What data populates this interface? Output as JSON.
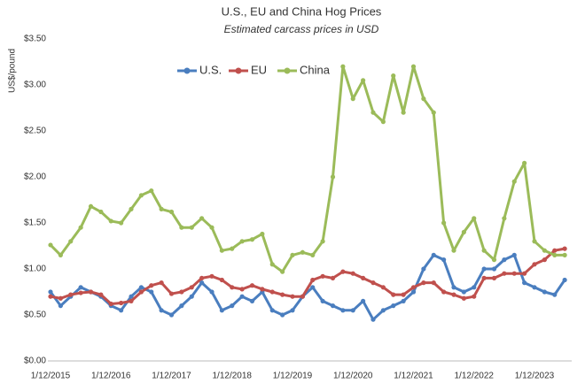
{
  "chart_data": {
    "type": "line",
    "title": "U.S., EU and China Hog Prices",
    "subtitle": "Estimated carcass prices in USD",
    "y_label": "US$/pound",
    "categories": [
      "1/12/2015",
      null,
      null,
      null,
      null,
      null,
      "1/12/2016",
      null,
      null,
      null,
      null,
      null,
      "1/12/2017",
      null,
      null,
      null,
      null,
      null,
      "1/12/2018",
      null,
      null,
      null,
      null,
      null,
      "1/12/2019",
      null,
      null,
      null,
      null,
      null,
      "1/12/2020",
      null,
      null,
      null,
      null,
      null,
      "1/12/2021",
      null,
      null,
      null,
      null,
      null,
      "1/12/2022",
      null,
      null,
      null,
      null,
      null,
      "1/12/2023",
      null,
      null,
      null
    ],
    "series": [
      {
        "name": "U.S.",
        "color": "#4a7ebf",
        "values": [
          0.75,
          0.6,
          0.7,
          0.8,
          0.75,
          0.7,
          0.6,
          0.55,
          0.7,
          0.8,
          0.75,
          0.55,
          0.5,
          0.6,
          0.7,
          0.85,
          0.75,
          0.55,
          0.6,
          0.7,
          0.65,
          0.75,
          0.55,
          0.5,
          0.55,
          0.7,
          0.8,
          0.65,
          0.6,
          0.55,
          0.55,
          0.65,
          0.45,
          0.55,
          0.6,
          0.65,
          0.75,
          1.0,
          1.15,
          1.1,
          0.8,
          0.75,
          0.8,
          1.0,
          1.0,
          1.1,
          1.15,
          0.85,
          0.8,
          0.75,
          0.72,
          0.88
        ]
      },
      {
        "name": "EU",
        "color": "#c0504d",
        "values": [
          0.7,
          0.68,
          0.72,
          0.74,
          0.75,
          0.72,
          0.62,
          0.63,
          0.65,
          0.75,
          0.82,
          0.85,
          0.73,
          0.75,
          0.8,
          0.9,
          0.92,
          0.88,
          0.8,
          0.78,
          0.82,
          0.78,
          0.75,
          0.72,
          0.7,
          0.7,
          0.88,
          0.92,
          0.9,
          0.97,
          0.95,
          0.9,
          0.85,
          0.8,
          0.72,
          0.72,
          0.8,
          0.85,
          0.85,
          0.75,
          0.72,
          0.68,
          0.7,
          0.9,
          0.9,
          0.95,
          0.95,
          0.95,
          1.05,
          1.1,
          1.2,
          1.22
        ]
      },
      {
        "name": "China",
        "color": "#9bbb59",
        "values": [
          1.26,
          1.15,
          1.3,
          1.45,
          1.68,
          1.62,
          1.52,
          1.5,
          1.65,
          1.8,
          1.85,
          1.65,
          1.62,
          1.45,
          1.45,
          1.55,
          1.45,
          1.2,
          1.22,
          1.3,
          1.32,
          1.38,
          1.05,
          0.97,
          1.15,
          1.18,
          1.15,
          1.3,
          2.0,
          3.2,
          2.85,
          3.05,
          2.7,
          2.6,
          3.1,
          2.7,
          3.2,
          2.85,
          2.7,
          1.5,
          1.2,
          1.4,
          1.55,
          1.2,
          1.1,
          1.55,
          1.95,
          2.15,
          1.3,
          1.2,
          1.15,
          1.15
        ]
      }
    ],
    "ylim": [
      0,
      3.5
    ],
    "yticks": [
      {
        "value": 0,
        "label": "$0.00"
      },
      {
        "value": 0.5,
        "label": "$0.50"
      },
      {
        "value": 1,
        "label": "$1.00"
      },
      {
        "value": 1.5,
        "label": "$1.50"
      },
      {
        "value": 2,
        "label": "$2.00"
      },
      {
        "value": 2.5,
        "label": "$2.50"
      },
      {
        "value": 3,
        "label": "$3.00"
      },
      {
        "value": 3.5,
        "label": "$3.50"
      }
    ],
    "grid": false
  }
}
